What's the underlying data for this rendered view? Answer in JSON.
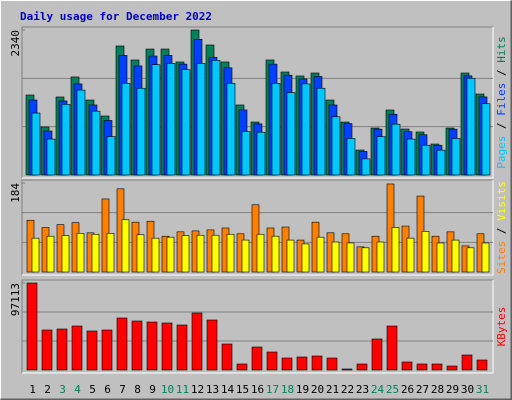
{
  "title": "Daily usage for December 2022",
  "categories": [
    "1",
    "2",
    "3",
    "4",
    "5",
    "6",
    "7",
    "8",
    "9",
    "10",
    "11",
    "12",
    "13",
    "14",
    "15",
    "16",
    "17",
    "18",
    "19",
    "20",
    "21",
    "22",
    "23",
    "24",
    "25",
    "26",
    "27",
    "28",
    "29",
    "30",
    "31"
  ],
  "category_colors": [
    "#000000",
    "#000000",
    "#00805c",
    "#00805c",
    "#000000",
    "#000000",
    "#000000",
    "#000000",
    "#000000",
    "#00805c",
    "#00805c",
    "#000000",
    "#000000",
    "#000000",
    "#000000",
    "#000000",
    "#00805c",
    "#00805c",
    "#000000",
    "#000000",
    "#000000",
    "#000000",
    "#000000",
    "#00805c",
    "#00805c",
    "#000000",
    "#000000",
    "#000000",
    "#000000",
    "#000000",
    "#00805c"
  ],
  "legend_separator": " / ",
  "chart_data": [
    {
      "type": "bar",
      "ylim": [
        0,
        2340
      ],
      "yticks": [
        2340
      ],
      "series": [
        {
          "name": "Hits",
          "color": "#00805c",
          "values": [
            1291,
            775,
            1259,
            1582,
            1210,
            952,
            2082,
            1856,
            2033,
            2033,
            1824,
            2340,
            2098,
            1824,
            1130,
            855,
            1856,
            1662,
            1598,
            1646,
            1210,
            855,
            403,
            758,
            1049,
            742,
            694,
            500,
            758,
            1646,
            1307
          ]
        },
        {
          "name": "Files",
          "color": "#0040ff",
          "values": [
            1210,
            710,
            1195,
            1470,
            1130,
            880,
            1930,
            1760,
            1920,
            1930,
            1790,
            2190,
            1900,
            1730,
            1050,
            825,
            1790,
            1610,
            1550,
            1590,
            1130,
            830,
            380,
            740,
            980,
            700,
            650,
            480,
            740,
            1600,
            1260
          ]
        },
        {
          "name": "Pages",
          "color": "#00c8ff",
          "values": [
            1000,
            580,
            1140,
            1370,
            1030,
            620,
            1480,
            1400,
            1780,
            1800,
            1700,
            1800,
            1850,
            1480,
            700,
            690,
            1480,
            1330,
            1470,
            1400,
            940,
            590,
            260,
            620,
            820,
            580,
            480,
            400,
            590,
            1560,
            1150
          ]
        }
      ]
    },
    {
      "type": "bar",
      "ylim": [
        0,
        184
      ],
      "yticks": [
        184
      ],
      "series": [
        {
          "name": "Visits",
          "color": "#ffff00",
          "values": [
            70,
            74,
            75,
            80,
            78,
            80,
            108,
            77,
            70,
            72,
            75,
            76,
            76,
            78,
            66,
            78,
            74,
            66,
            58,
            72,
            62,
            60,
            50,
            62,
            92,
            70,
            84,
            60,
            66,
            50,
            60
          ]
        },
        {
          "name": "Sites",
          "color": "#ff8000",
          "values": [
            107,
            92,
            98,
            102,
            81,
            151,
            172,
            103,
            105,
            74,
            83,
            85,
            87,
            91,
            79,
            139,
            91,
            93,
            66,
            103,
            81,
            79,
            52,
            74,
            182,
            95,
            157,
            74,
            83,
            54,
            79
          ]
        }
      ]
    },
    {
      "type": "bar",
      "ylim": [
        0,
        97113
      ],
      "yticks": [
        97113
      ],
      "series": [
        {
          "name": "KBytes",
          "color": "#ff0000",
          "values": [
            97113,
            44650,
            45766,
            49115,
            43533,
            44650,
            58046,
            54697,
            53581,
            52465,
            50232,
            63627,
            55813,
            29022,
            6698,
            25673,
            20092,
            13395,
            14511,
            15627,
            13395,
            1116,
            6698,
            34604,
            49115,
            8930,
            6698,
            6698,
            4465,
            16744,
            11163
          ]
        }
      ]
    }
  ]
}
